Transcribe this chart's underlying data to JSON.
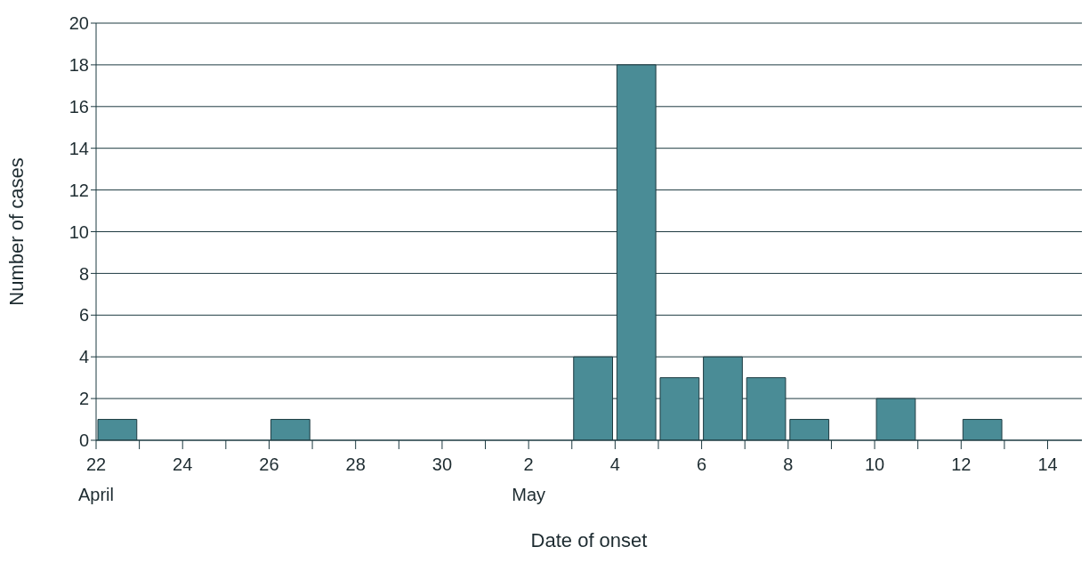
{
  "chart_data": {
    "type": "histogram",
    "xlabel": "Date of onset",
    "ylabel": "Number of cases",
    "bins": [
      "--04-22",
      "--04-23",
      "--04-24",
      "--04-25",
      "--04-26",
      "--04-27",
      "--04-28",
      "--04-29",
      "--04-30",
      "--05-01",
      "--05-02",
      "--05-03",
      "--05-04",
      "--05-05",
      "--05-06",
      "--05-07",
      "--05-08",
      "--05-09",
      "--05-10",
      "--05-11",
      "--05-12",
      "--05-13",
      "--05-14"
    ],
    "values": [
      1,
      0,
      0,
      0,
      1,
      0,
      0,
      0,
      0,
      0,
      0,
      4,
      18,
      3,
      4,
      3,
      1,
      0,
      2,
      0,
      1,
      0
    ],
    "color": "#4a8c96",
    "xlim": [
      "--04-22",
      "--05-14T19:00"
    ],
    "xticks": [
      {
        "value": "--04-22",
        "label": "22\nApril"
      },
      {
        "value": "--04-23",
        "label": null
      },
      {
        "value": "--04-24",
        "label": "24"
      },
      {
        "value": "--04-25",
        "label": null
      },
      {
        "value": "--04-26",
        "label": "26"
      },
      {
        "value": "--04-27",
        "label": null
      },
      {
        "value": "--04-28",
        "label": "28"
      },
      {
        "value": "--04-29",
        "label": null
      },
      {
        "value": "--04-30",
        "label": "30"
      },
      {
        "value": "--05-01",
        "label": null
      },
      {
        "value": "--05-02",
        "label": "2\nMay"
      },
      {
        "value": "--05-03",
        "label": null
      },
      {
        "value": "--05-04",
        "label": "4"
      },
      {
        "value": "--05-05",
        "label": null
      },
      {
        "value": "--05-06",
        "label": "6"
      },
      {
        "value": "--05-07",
        "label": null
      },
      {
        "value": "--05-08",
        "label": "8"
      },
      {
        "value": "--05-09",
        "label": null
      },
      {
        "value": "--05-10",
        "label": "10"
      },
      {
        "value": "--05-11",
        "label": null
      },
      {
        "value": "--05-12",
        "label": "12"
      },
      {
        "value": "--05-13",
        "label": null
      },
      {
        "value": "--05-14",
        "label": "14"
      }
    ],
    "ylim": [
      0,
      20
    ],
    "yticks": [
      0,
      2,
      4,
      6,
      8,
      10,
      12,
      14,
      16,
      18,
      20
    ],
    "grid": "y"
  }
}
